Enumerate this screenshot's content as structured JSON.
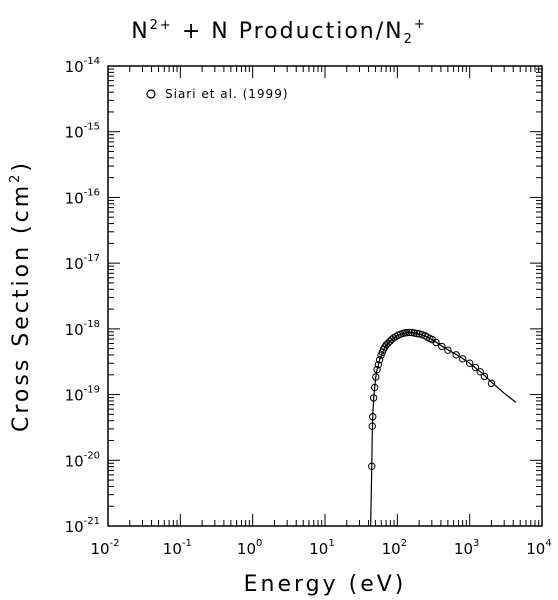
{
  "chart_data": {
    "type": "scatter",
    "title": {
      "part1": "N",
      "part1_sup": "2+",
      "part2": " + N Production/N",
      "part2_sub": "2",
      "part2_sup": "+"
    },
    "xlabel": "Energy (eV)",
    "ylabel": {
      "before": "Cross Section (cm",
      "sup": "2",
      "after": ")"
    },
    "x_scale": "log",
    "y_scale": "log",
    "xlim": [
      0.01,
      10000
    ],
    "ylim": [
      1e-21,
      1e-14
    ],
    "x_ticks": [
      {
        "base": "10",
        "exp": "-2"
      },
      {
        "base": "10",
        "exp": "-1"
      },
      {
        "base": "10",
        "exp": "0"
      },
      {
        "base": "10",
        "exp": "1"
      },
      {
        "base": "10",
        "exp": "2"
      },
      {
        "base": "10",
        "exp": "3"
      },
      {
        "base": "10",
        "exp": "4"
      }
    ],
    "y_ticks": [
      {
        "base": "10",
        "exp": "-21"
      },
      {
        "base": "10",
        "exp": "-20"
      },
      {
        "base": "10",
        "exp": "-19"
      },
      {
        "base": "10",
        "exp": "-18"
      },
      {
        "base": "10",
        "exp": "-17"
      },
      {
        "base": "10",
        "exp": "-16"
      },
      {
        "base": "10",
        "exp": "-15"
      },
      {
        "base": "10",
        "exp": "-14"
      }
    ],
    "legend_position": "top-left",
    "grid": false,
    "series": [
      {
        "name": "Siari et al. (1999)",
        "marker": "open-circle",
        "points": [
          [
            44.3,
            8.1e-21
          ],
          [
            45.0,
            3.3e-20
          ],
          [
            45.7,
            4.6e-20
          ],
          [
            47.0,
            8.9e-20
          ],
          [
            48.6,
            1.28e-19
          ],
          [
            50.4,
            1.85e-19
          ],
          [
            52.5,
            2.4e-19
          ],
          [
            54.8,
            2.85e-19
          ],
          [
            56.8,
            3.38e-19
          ],
          [
            59.5,
            3.97e-19
          ],
          [
            62.1,
            4.4e-19
          ],
          [
            64.4,
            4.89e-19
          ],
          [
            67.3,
            5.3e-19
          ],
          [
            70.4,
            5.74e-19
          ],
          [
            74.5,
            6.06e-19
          ],
          [
            78.7,
            6.45e-19
          ],
          [
            83.6,
            6.92e-19
          ],
          [
            89.5,
            7.34e-19
          ],
          [
            95.1,
            7.6e-19
          ],
          [
            102,
            8e-19
          ],
          [
            111,
            8.3e-19
          ],
          [
            120,
            8.55e-19
          ],
          [
            128,
            8.7e-19
          ],
          [
            136,
            8.78e-19
          ],
          [
            146,
            8.82e-19
          ],
          [
            158,
            8.8e-19
          ],
          [
            172,
            8.64e-19
          ],
          [
            186,
            8.5e-19
          ],
          [
            200,
            8.4e-19
          ],
          [
            220,
            8.15e-19
          ],
          [
            242,
            7.84e-19
          ],
          [
            258,
            7.5e-19
          ],
          [
            281,
            7.14e-19
          ],
          [
            304,
            6.86e-19
          ],
          [
            343,
            6.2e-19
          ],
          [
            412,
            5.4e-19
          ],
          [
            500,
            4.74e-19
          ],
          [
            650,
            4.03e-19
          ],
          [
            800,
            3.5e-19
          ],
          [
            1000,
            3e-19
          ],
          [
            1200,
            2.59e-19
          ],
          [
            1400,
            2.22e-19
          ],
          [
            1600,
            1.89e-19
          ],
          [
            2000,
            1.48e-19
          ]
        ]
      },
      {
        "name": "fit",
        "style": "solid-line",
        "points": [
          [
            42.7,
            1e-21
          ],
          [
            43.6,
            3e-21
          ],
          [
            44.3,
            8e-21
          ],
          [
            45.0,
            2.4e-20
          ],
          [
            45.7,
            4.6e-20
          ],
          [
            47.0,
            8.5e-20
          ],
          [
            48.6,
            1.28e-19
          ],
          [
            50.4,
            1.85e-19
          ],
          [
            52.5,
            2.4e-19
          ],
          [
            54.8,
            2.85e-19
          ],
          [
            57.0,
            3.38e-19
          ],
          [
            62.0,
            4.3e-19
          ],
          [
            67.0,
            5.2e-19
          ],
          [
            75.0,
            6.1e-19
          ],
          [
            85.0,
            6.9e-19
          ],
          [
            100,
            7.9e-19
          ],
          [
            120,
            8.5e-19
          ],
          [
            140,
            8.8e-19
          ],
          [
            160,
            8.8e-19
          ],
          [
            190,
            8.5e-19
          ],
          [
            220,
            8.1e-19
          ],
          [
            260,
            7.5e-19
          ],
          [
            300,
            6.9e-19
          ],
          [
            400,
            5.6e-19
          ],
          [
            500,
            4.8e-19
          ],
          [
            700,
            3.9e-19
          ],
          [
            1000,
            3e-19
          ],
          [
            1500,
            2.1e-19
          ],
          [
            2000,
            1.55e-19
          ],
          [
            3000,
            1.05e-19
          ],
          [
            4360,
            7.6e-20
          ]
        ]
      }
    ]
  }
}
